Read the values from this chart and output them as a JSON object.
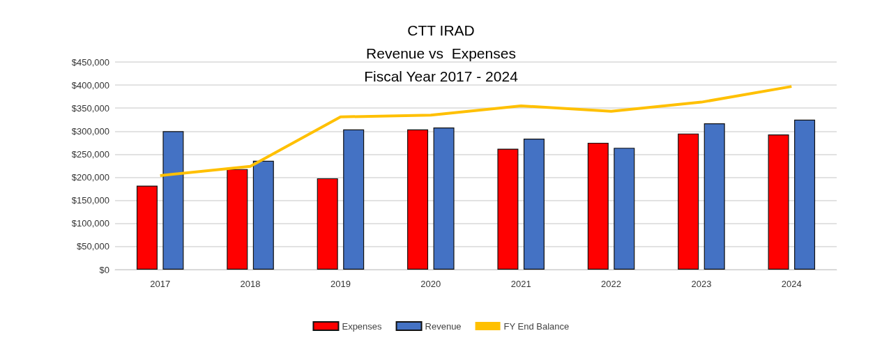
{
  "chart_data": {
    "type": "bar",
    "title": "CTT IRAD\nRevenue vs  Expenses\nFiscal Year 2017 - 2024",
    "categories": [
      "2017",
      "2018",
      "2019",
      "2020",
      "2021",
      "2022",
      "2023",
      "2024"
    ],
    "series": [
      {
        "name": "Expenses",
        "color": "#ff0000",
        "values": [
          182000,
          218000,
          198000,
          304000,
          262000,
          275000,
          295000,
          293000
        ]
      },
      {
        "name": "Revenue",
        "color": "#4472c4",
        "values": [
          300000,
          236000,
          304000,
          308000,
          284000,
          264000,
          317000,
          325000
        ]
      },
      {
        "name": "FY End Balance",
        "type": "line",
        "color": "#ffc000",
        "values": [
          204000,
          224000,
          331000,
          335000,
          355000,
          343000,
          363000,
          397000
        ]
      }
    ],
    "ylim": [
      0,
      450000
    ],
    "yticks": [
      {
        "value": 0,
        "label": "$0"
      },
      {
        "value": 50000,
        "label": "$50,000"
      },
      {
        "value": 100000,
        "label": "$100,000"
      },
      {
        "value": 150000,
        "label": "$150,000"
      },
      {
        "value": 200000,
        "label": "$200,000"
      },
      {
        "value": 250000,
        "label": "$250,000"
      },
      {
        "value": 300000,
        "label": "$300,000"
      },
      {
        "value": 350000,
        "label": "$350,000"
      },
      {
        "value": 400000,
        "label": "$400,000"
      },
      {
        "value": 450000,
        "label": "$450,000"
      }
    ],
    "grid": "y",
    "legend": "bottom",
    "marker": "none"
  }
}
